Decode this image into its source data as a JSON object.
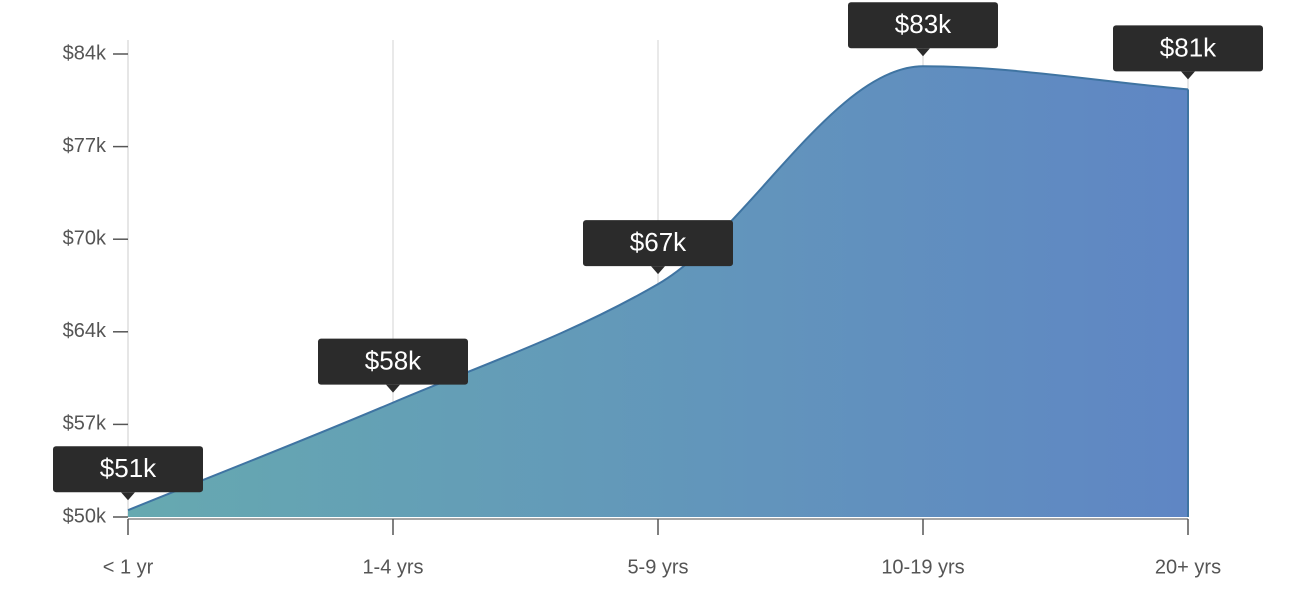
{
  "chart_data": {
    "type": "area",
    "categories": [
      "< 1 yr",
      "1-4 yrs",
      "5-9 yrs",
      "10-19 yrs",
      "20+ yrs"
    ],
    "values": [
      50500,
      58400,
      67100,
      83100,
      81400
    ],
    "value_labels": [
      "$51k",
      "$58k",
      "$67k",
      "$83k",
      "$81k"
    ],
    "color": "#5f86c4",
    "gradient_start": "#66a9b0",
    "line_color": "#3f74a2",
    "ylim": [
      50000,
      84000
    ],
    "yticks": [
      {
        "value": 50000,
        "label": "$50k"
      },
      {
        "value": 56800,
        "label": "$57k"
      },
      {
        "value": 63600,
        "label": "$64k"
      },
      {
        "value": 70400,
        "label": "$70k"
      },
      {
        "value": 77200,
        "label": "$77k"
      },
      {
        "value": 84000,
        "label": "$84k"
      }
    ],
    "grid": true
  }
}
